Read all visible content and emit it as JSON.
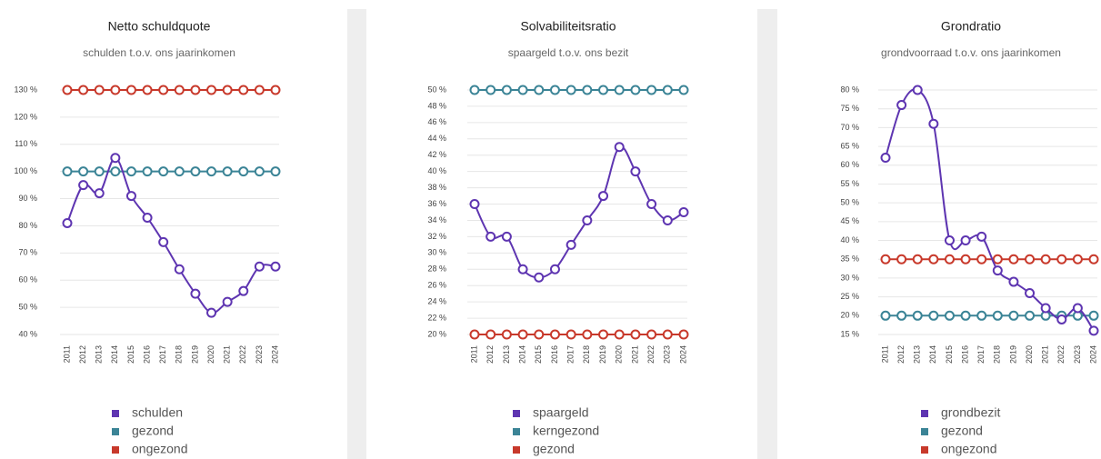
{
  "chart_data": [
    {
      "type": "line",
      "title": "Netto schuldquote",
      "subtitle": "schulden t.o.v. ons jaarinkomen",
      "categories": [
        "2011",
        "2012",
        "2013",
        "2014",
        "2015",
        "2016",
        "2017",
        "2018",
        "2019",
        "2020",
        "2021",
        "2022",
        "2023",
        "2024"
      ],
      "series": [
        {
          "name": "schulden",
          "color": "#5e35b1",
          "values": [
            81,
            95,
            92,
            105,
            91,
            83,
            74,
            64,
            55,
            48,
            52,
            56,
            65,
            65
          ]
        },
        {
          "name": "gezond",
          "color": "#3b8496",
          "values": [
            100,
            100,
            100,
            100,
            100,
            100,
            100,
            100,
            100,
            100,
            100,
            100,
            100,
            100
          ]
        },
        {
          "name": "ongezond",
          "color": "#c8392b",
          "values": [
            130,
            130,
            130,
            130,
            130,
            130,
            130,
            130,
            130,
            130,
            130,
            130,
            130,
            130
          ]
        }
      ],
      "ylim": [
        40,
        130
      ],
      "yticks": [
        {
          "value": 40,
          "label": "40 %"
        },
        {
          "value": 50,
          "label": "50 %"
        },
        {
          "value": 60,
          "label": "60 %"
        },
        {
          "value": 70,
          "label": "70 %"
        },
        {
          "value": 80,
          "label": "80 %"
        },
        {
          "value": 90,
          "label": "90 %"
        },
        {
          "value": 100,
          "label": "100 %"
        },
        {
          "value": 110,
          "label": "110 %"
        },
        {
          "value": 120,
          "label": "120 %"
        },
        {
          "value": 130,
          "label": "130 %"
        }
      ],
      "grid": true
    },
    {
      "type": "line",
      "title": "Solvabiliteitsratio",
      "subtitle": "spaargeld t.o.v. ons bezit",
      "categories": [
        "2011",
        "2012",
        "2013",
        "2014",
        "2015",
        "2016",
        "2017",
        "2018",
        "2019",
        "2020",
        "2021",
        "2022",
        "2023",
        "2024"
      ],
      "series": [
        {
          "name": "spaargeld",
          "color": "#5e35b1",
          "values": [
            36,
            32,
            32,
            28,
            27,
            28,
            31,
            34,
            37,
            43,
            40,
            36,
            34,
            35
          ]
        },
        {
          "name": "kerngezond",
          "color": "#3b8496",
          "values": [
            50,
            50,
            50,
            50,
            50,
            50,
            50,
            50,
            50,
            50,
            50,
            50,
            50,
            50
          ]
        },
        {
          "name": "gezond",
          "color": "#c8392b",
          "values": [
            20,
            20,
            20,
            20,
            20,
            20,
            20,
            20,
            20,
            20,
            20,
            20,
            20,
            20
          ]
        }
      ],
      "ylim": [
        20,
        50
      ],
      "yticks": [
        {
          "value": 20,
          "label": "20 %"
        },
        {
          "value": 22,
          "label": "22 %"
        },
        {
          "value": 24,
          "label": "24 %"
        },
        {
          "value": 26,
          "label": "26 %"
        },
        {
          "value": 28,
          "label": "28 %"
        },
        {
          "value": 30,
          "label": "30 %"
        },
        {
          "value": 32,
          "label": "32 %"
        },
        {
          "value": 34,
          "label": "34 %"
        },
        {
          "value": 36,
          "label": "36 %"
        },
        {
          "value": 38,
          "label": "38 %"
        },
        {
          "value": 40,
          "label": "40 %"
        },
        {
          "value": 42,
          "label": "42 %"
        },
        {
          "value": 44,
          "label": "44 %"
        },
        {
          "value": 46,
          "label": "46 %"
        },
        {
          "value": 48,
          "label": "48 %"
        },
        {
          "value": 50,
          "label": "50 %"
        }
      ],
      "grid": true
    },
    {
      "type": "line",
      "title": "Grondratio",
      "subtitle": "grondvoorraad t.o.v. ons jaarinkomen",
      "categories": [
        "2011",
        "2012",
        "2013",
        "2014",
        "2015",
        "2016",
        "2017",
        "2018",
        "2019",
        "2020",
        "2021",
        "2022",
        "2023",
        "2024"
      ],
      "series": [
        {
          "name": "grondbezit",
          "color": "#5e35b1",
          "values": [
            62,
            76,
            80,
            71,
            40,
            40,
            41,
            32,
            29,
            26,
            22,
            19,
            22,
            16
          ]
        },
        {
          "name": "gezond",
          "color": "#3b8496",
          "values": [
            20,
            20,
            20,
            20,
            20,
            20,
            20,
            20,
            20,
            20,
            20,
            20,
            20,
            20
          ]
        },
        {
          "name": "ongezond",
          "color": "#c8392b",
          "values": [
            35,
            35,
            35,
            35,
            35,
            35,
            35,
            35,
            35,
            35,
            35,
            35,
            35,
            35
          ]
        }
      ],
      "ylim": [
        15,
        80
      ],
      "yticks": [
        {
          "value": 15,
          "label": "15 %"
        },
        {
          "value": 20,
          "label": "20 %"
        },
        {
          "value": 25,
          "label": "25 %"
        },
        {
          "value": 30,
          "label": "30 %"
        },
        {
          "value": 35,
          "label": "35 %"
        },
        {
          "value": 40,
          "label": "40 %"
        },
        {
          "value": 45,
          "label": "45 %"
        },
        {
          "value": 50,
          "label": "50 %"
        },
        {
          "value": 55,
          "label": "55 %"
        },
        {
          "value": 60,
          "label": "60 %"
        },
        {
          "value": 65,
          "label": "65 %"
        },
        {
          "value": 70,
          "label": "70 %"
        },
        {
          "value": 75,
          "label": "75 %"
        },
        {
          "value": 80,
          "label": "80 %"
        }
      ],
      "grid": true
    }
  ]
}
